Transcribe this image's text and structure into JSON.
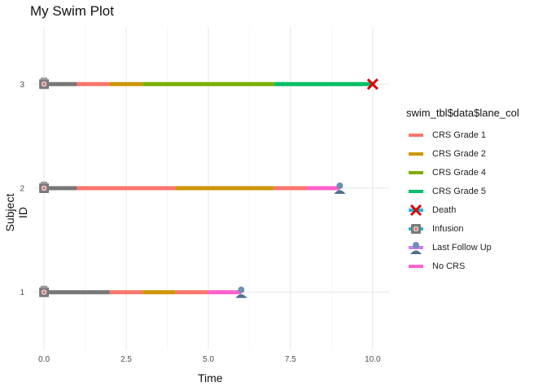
{
  "chart_data": {
    "type": "swimmer",
    "title": "My Swim Plot",
    "xlabel": "Time",
    "ylabel": "Subject ID",
    "xlim": [
      -0.3,
      10.5
    ],
    "ylim": [
      0.45,
      3.55
    ],
    "x_ticks": [
      "0.0",
      "2.5",
      "5.0",
      "7.5",
      "10.0"
    ],
    "x_tick_values": [
      0,
      2.5,
      5,
      7.5,
      10
    ],
    "y_ticks": [
      "1",
      "2",
      "3"
    ],
    "y_tick_values": [
      1,
      2,
      3
    ],
    "grid": true,
    "legend_position": "right",
    "legend_title": "swim_tbl$data$lane_col",
    "legend": [
      {
        "label": "CRS Grade 1",
        "kind": "line",
        "color": "#F8766D"
      },
      {
        "label": "CRS Grade 2",
        "kind": "line",
        "color": "#CD9600"
      },
      {
        "label": "CRS Grade 4",
        "kind": "line",
        "color": "#7CAE00"
      },
      {
        "label": "CRS Grade 5",
        "kind": "line",
        "color": "#00BE67"
      },
      {
        "label": "Death",
        "kind": "death",
        "color": "#DD0000"
      },
      {
        "label": "Infusion",
        "kind": "infusion",
        "color": "#777777"
      },
      {
        "label": "Last Follow Up",
        "kind": "followup",
        "color": "#5A7FA3"
      },
      {
        "label": "No CRS",
        "kind": "line",
        "color": "#FF61CC"
      }
    ],
    "subjects": [
      {
        "id": "1",
        "segments": [
          {
            "start": 0,
            "end": 2,
            "state": "No CRS (pre)",
            "color": "#777777"
          },
          {
            "start": 2,
            "end": 3,
            "state": "CRS Grade 1",
            "color": "#F8766D"
          },
          {
            "start": 3,
            "end": 4,
            "state": "CRS Grade 2",
            "color": "#CD9600"
          },
          {
            "start": 4,
            "end": 5,
            "state": "CRS Grade 1",
            "color": "#F8766D"
          },
          {
            "start": 5,
            "end": 6,
            "state": "No CRS",
            "color": "#FF61CC"
          }
        ],
        "markers": [
          {
            "x": 0,
            "type": "infusion"
          },
          {
            "x": 6,
            "type": "followup"
          }
        ]
      },
      {
        "id": "2",
        "segments": [
          {
            "start": 0,
            "end": 1,
            "state": "No CRS (pre)",
            "color": "#777777"
          },
          {
            "start": 1,
            "end": 4,
            "state": "CRS Grade 1",
            "color": "#F8766D"
          },
          {
            "start": 4,
            "end": 7,
            "state": "CRS Grade 2",
            "color": "#CD9600"
          },
          {
            "start": 7,
            "end": 8,
            "state": "CRS Grade 1",
            "color": "#F8766D"
          },
          {
            "start": 8,
            "end": 9,
            "state": "No CRS",
            "color": "#FF61CC"
          }
        ],
        "markers": [
          {
            "x": 0,
            "type": "infusion"
          },
          {
            "x": 9,
            "type": "followup"
          }
        ]
      },
      {
        "id": "3",
        "segments": [
          {
            "start": 0,
            "end": 1,
            "state": "No CRS (pre)",
            "color": "#777777"
          },
          {
            "start": 1,
            "end": 2,
            "state": "CRS Grade 1",
            "color": "#F8766D"
          },
          {
            "start": 2,
            "end": 3,
            "state": "CRS Grade 2",
            "color": "#CD9600"
          },
          {
            "start": 3,
            "end": 7,
            "state": "CRS Grade 4",
            "color": "#7CAE00"
          },
          {
            "start": 7,
            "end": 10,
            "state": "CRS Grade 5",
            "color": "#00BE67"
          }
        ],
        "markers": [
          {
            "x": 0,
            "type": "infusion"
          },
          {
            "x": 10,
            "type": "death"
          }
        ]
      }
    ]
  }
}
